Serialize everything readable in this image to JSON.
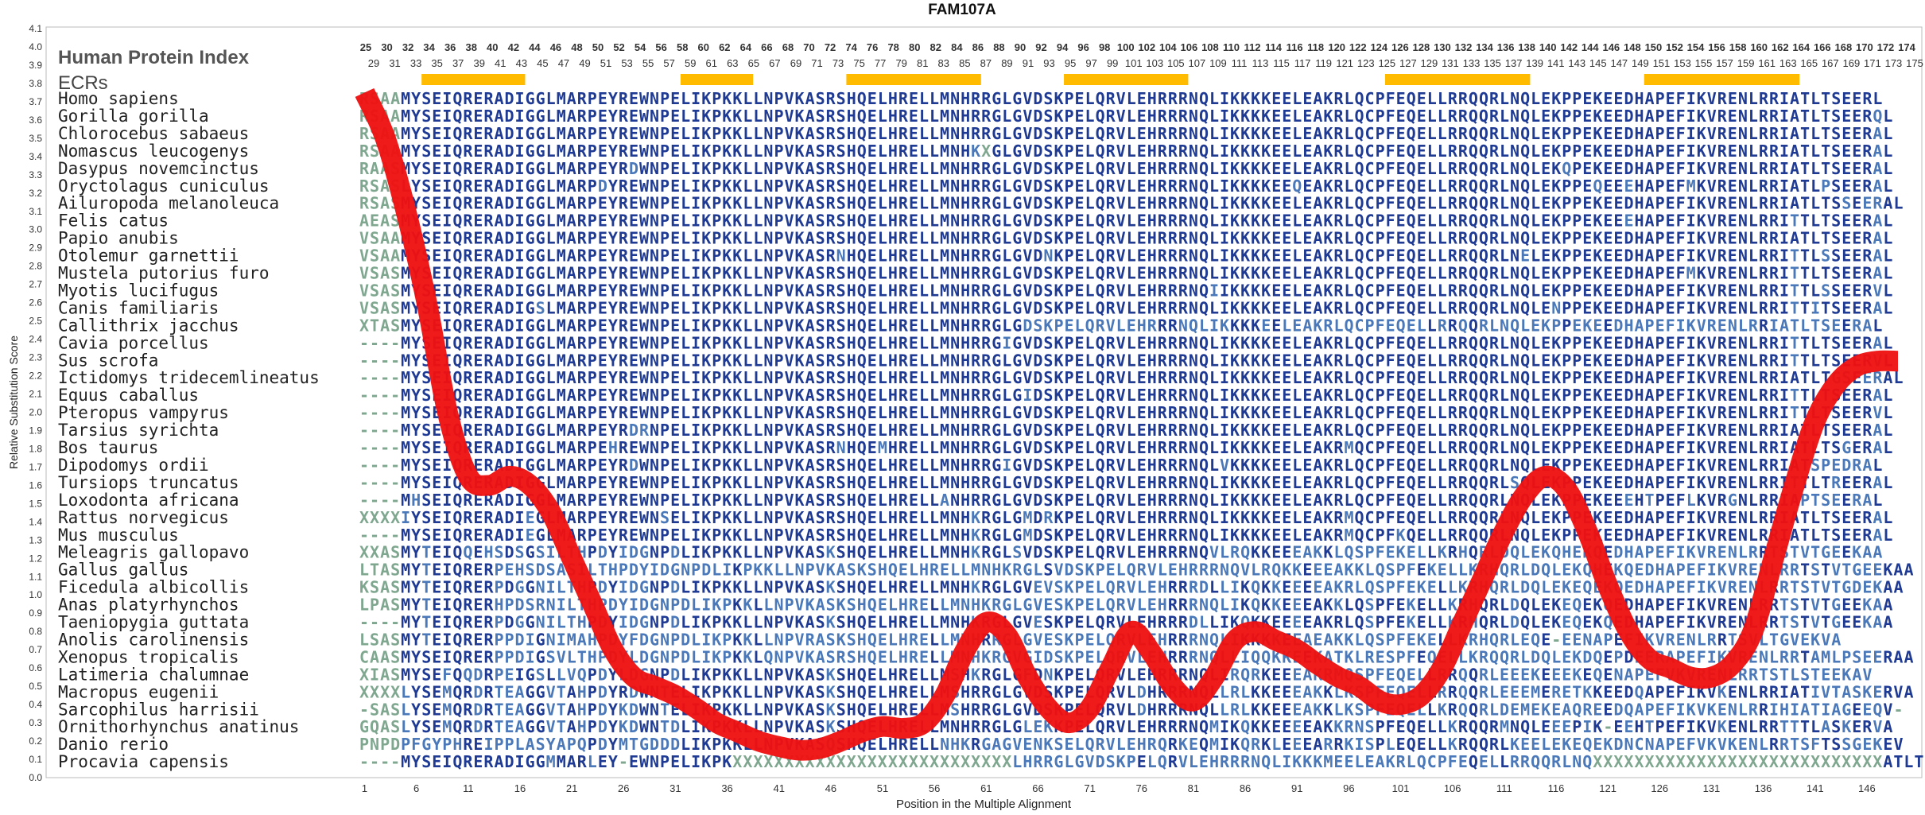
{
  "chart_data": {
    "type": "line",
    "title": "FAM107A",
    "ylabel": "Relative Substitution Score",
    "xlabel": "Position in the Multiple Alignment",
    "ylim": [
      0.0,
      4.1
    ],
    "yticks": [
      "0.0",
      "0.1",
      "0.2",
      "0.3",
      "0.4",
      "0.5",
      "0.6",
      "0.7",
      "0.8",
      "0.9",
      "1.0",
      "1.1",
      "1.2",
      "1.3",
      "1.4",
      "1.5",
      "1.6",
      "1.7",
      "1.8",
      "1.9",
      "2.0",
      "2.1",
      "2.2",
      "2.3",
      "2.4",
      "2.5",
      "2.6",
      "2.7",
      "2.8",
      "2.9",
      "3.0",
      "3.1",
      "3.2",
      "3.3",
      "3.4",
      "3.5",
      "3.6",
      "3.7",
      "3.8",
      "3.9",
      "4.0",
      "4.1"
    ],
    "xticks": [
      "1",
      "6",
      "11",
      "16",
      "21",
      "26",
      "31",
      "36",
      "41",
      "46",
      "51",
      "56",
      "61",
      "66",
      "71",
      "76",
      "81",
      "86",
      "91",
      "96",
      "101",
      "106",
      "111",
      "116",
      "121",
      "126",
      "131",
      "136",
      "141",
      "146"
    ],
    "header_label": "Human Protein Index",
    "ecr_label": "ECRs",
    "human_index_even": [
      "25",
      "30",
      "32",
      "34",
      "36",
      "38",
      "40",
      "42",
      "44",
      "46",
      "48",
      "50",
      "52",
      "54",
      "56",
      "58",
      "60",
      "62",
      "64",
      "66",
      "68",
      "70",
      "72",
      "74",
      "76",
      "78",
      "80",
      "82",
      "84",
      "86",
      "88",
      "90",
      "92",
      "94",
      "96",
      "98",
      "100",
      "102",
      "104",
      "106",
      "108",
      "110",
      "112",
      "114",
      "116",
      "118",
      "120",
      "122",
      "124",
      "126",
      "128",
      "130",
      "132",
      "134",
      "136",
      "138",
      "140",
      "142",
      "144",
      "146",
      "148",
      "150",
      "152",
      "154",
      "156",
      "158",
      "160",
      "162",
      "164",
      "166",
      "168",
      "170",
      "172",
      "174"
    ],
    "human_index_odd": [
      "29",
      "31",
      "33",
      "35",
      "37",
      "39",
      "41",
      "43",
      "45",
      "47",
      "49",
      "51",
      "53",
      "55",
      "57",
      "59",
      "61",
      "63",
      "65",
      "67",
      "69",
      "71",
      "73",
      "75",
      "77",
      "79",
      "81",
      "83",
      "85",
      "87",
      "89",
      "91",
      "93",
      "95",
      "97",
      "99",
      "101",
      "103",
      "105",
      "107",
      "109",
      "111",
      "113",
      "115",
      "117",
      "119",
      "121",
      "123",
      "125",
      "127",
      "129",
      "131",
      "133",
      "135",
      "137",
      "139",
      "141",
      "143",
      "145",
      "147",
      "149",
      "151",
      "153",
      "155",
      "157",
      "159",
      "161",
      "163",
      "165",
      "167",
      "169",
      "171",
      "173",
      "175"
    ],
    "ecr_regions": [
      [
        7,
        16
      ],
      [
        32,
        38
      ],
      [
        48,
        60
      ],
      [
        69,
        80
      ],
      [
        100,
        113
      ],
      [
        125,
        139
      ]
    ],
    "species": [
      "Homo sapiens",
      "Gorilla gorilla",
      "Chlorocebus sabaeus",
      "Nomascus leucogenys",
      "Dasypus novemcinctus",
      "Oryctolagus cuniculus",
      "Ailuropoda melanoleuca",
      "Felis catus",
      "Papio anubis",
      "Otolemur garnettii",
      "Mustela putorius furo",
      "Myotis lucifugus",
      "Canis familiaris",
      "Callithrix jacchus",
      "Cavia porcellus",
      "Sus scrofa",
      "Ictidomys tridecemlineatus",
      "Equus caballus",
      "Pteropus vampyrus",
      "Tarsius syrichta",
      "Bos taurus",
      "Dipodomys ordii",
      "Tursiops truncatus",
      "Loxodonta africana",
      "Rattus norvegicus",
      "Mus musculus",
      "Meleagris gallopavo",
      "Gallus gallus",
      "Ficedula albicollis",
      "Anas platyrhynchos",
      "Taeniopygia guttata",
      "Anolis carolinensis",
      "Xenopus tropicalis",
      "Latimeria chalumnae",
      "Macropus eugenii",
      "Sarcophilus harrisii",
      "Ornithorhynchus anatinus",
      "Danio rerio",
      "Procavia capensis"
    ],
    "sequences": [
      "RSAAMYSEIQRERADIGGLMARPEYREWNPELIKPKKLLNPVKASRSHQELHRELLMNHRRGLGVDSKPELQRVLEHRRRNQLIKKKKEELEAKRLQCPFEQELLRRQQRLNQLEKPPEKEEDHAPEFIKVRENLRRIATLTSEERL",
      "RSAAMYSEIQRERADIGGLMARPEYREWNPELIKPKKLLNPVKASRSHQELHRELLMNHRRGLGVDSKPELQRVLEHRRRNQLIKKKKEELEAKRLQCPFEQELLRRQQRLNQLEKPPEKEEDHAPEFIKVRENLRRIATLTSEERQL",
      "RSAAMYSEIQRERADIGGLMARPEYREWNPELIKPKKLLNPVKASRSHQELHRELLMNHRRGLGVDSKPELQRVLEHRRRNQLIKKKKEELEAKRLQCPFEQELLRRQQRLNQLEKPPEKEEDHAPEFIKVRENLRRIATLTSEERAL",
      "RSAAMYSEIQRERADIGGLMARPEYREWNPELIKPKKLLNPVKASRSHQELHRELLMNHKXGLGVDSKPELQRVLEHRRRNQLIKKKKEELEAKRLQCPFEQELLRRQQRLNQLEKPPEKEEDHAPEFIKVRENLRRIATLTSEERAL",
      "RAASMYSEIQRERADIGGLMARPEYRDWNPELIKPKKLLNPVKASRSHQELHRELLMNHRRGLGVDSKPELQRVLEHRRRNQLIKKKKEELEAKRLQCPFEQELLRRQQRLNQLEKQPEKEEDHAPEFIKVRENLRRIATLTSEERAL",
      "RSASLYSEIQRERADIGGLMARPDYREWNPELIKPKKLLNPVKASRSHQELHRELLMNHRRGLGVDSKPELQRVLEHRRRNQLIKKKKEEQEAKRLQCPFEQELLRRQQRLNQLEKPPEQEEEHAPEFMKVRENLRRIATLPSEERAL",
      "RSASMYSEIQRERADIGGLMARPEYREWNPELIKPKKLLNPVKASRSHQELHRELLMNHRRGLGVDSKPELQRVLEHRRRNQLIKKKKEELEAKRLQCPFEQELLRRQQRLNQLEKPPEKEEDHAPEFIKVRENLRRIATLTSSEERAL",
      "AEASMYSEIQRERADIGGLMARPEYREWNPELIKPKKLLNPVKASRSHQELHRELLMNHRRGLGVDSKPELQRVLEHRRRNQLIKKKKEELEAKRLQCPFEQELLRRQQRLNQLEKPPEKEEEHAPEFIKVRENLRRITTLTSEERAL",
      "VSAAMYSEIQRERADIGGLMARPEYREWNPELIKPKKLLNPVKASRSHQELHRELLMNHRRGLGVDSKPELQRVLEHRRRNQLIKKKKEELEAKRLQCPFEQELLRRQQRLNQLEKPPEKEEDHAPEFIKVRENLRRIATLTSEERAL",
      "VSAAMYSEIQRERADIGGLMARPEYREWNPELIKPKKLLNPVKASRNHQELHRELLMNHRRGLGVDNKPELQRVLEHRRRNQLIKKKKEELEAKRLQCPFEQELLRRQQRLNELEKPPEKEEDHAPEFIKVRENLRRITTLSSEERAL",
      "VSASMYSEIQRERADIGGLMARPEYREWNPELIKPKKLLNPVKASRSHQELHRELLMNHRRGLGVDSKPELQRVLEHRRRNQLIKKKKEELEAKRLQCPFEQELLRRQQRLNQLEKPPEKEEDHAPEFMKVRENLRRITTLTSEERAL",
      "VSASMYSEIQRERADIGGLMARPEYREWNPELIKPKKLLNPVKASRSHQELHRELLMNHRRGLGVDSKPELQRVLEHRRRNQIIKKKKEELEAKRLQCPFEQELLRRQQRLNQLEKPPEKEEDHAPEFIKVRENLRRITTLSSEERVL",
      "VSASMYSEIQRERADIGSLMARPEYREWNPELIKPKKLLNPVKASRSHQELHRELLMNHRRGLGVDSKPELQRVLEHRRRNQLIKKKKEELEAKRLQCPFEQELLRRQQRLNQLENPPEKEEDHAPEFIKVRENLRRITTITSEERAL",
      "XTASMYSEIQRERADIGGLMARPEYREWNPELIKPKKLLNPVKASRSHQELHRELLMNHRRGLGDSKPELQRVLEHRRRNQLIKKKKEELEAKRLQCPFEQELLRRQQRLNQLEKPPEKEEDHAPEFIKVRENLRRIATLTSEERAL",
      "----MYSEIQRERADIGGLMARPEYREWNPELIKPKKLLNPVKASRSHQELHRELLMNHRRGIGVDSKPELQRVLEHRRRNQLIKKKKEELEAKRLQCPFEQELLRRQQRLNQLEKPPEKEEDHAPEFIKVRENLRRITTLTSEERAL",
      "----MYSEIQRERADIGGLMARPEYREWNPELIKPKKLLNPVKASRSHQELHRELLMNHRRGLGVDSKPELQRVLEHRRRNQLIKKKKEELEAKRLQCPFEQELLRRQQRLNQLEKPPEKEEDHAPEFIKVRENLRRITTLTSEERVL",
      "----MYSEIQRERADIGGLMARPEYREWNPELIKPKKLLNPVKASRSHQELHRELLMNHRRGLGVDSKPELQRVLEHRRRNQLIKKKKEELEAKRLQCPFEQELLRRQQRLNQLEKPPEKEEDHAPEFIKVRENLRRIATLTGSEERAL",
      "----MYSEIQRERADIGGLMARPEYREWNPELIKPKKLLNPVKASRSHQELHRELLMNHRRGLGIDSKPELQRVLEHRRRNQLIKKKKEELEAKRLQCPFEQELLRRQQRLNQLEKPPEKEEDHAPEFIKVRENLRRITTLTSEERAL",
      "----MYSEIQRERADIGGLMARPEYREWNPELIKPKKLLNPVKASRSHQELHRELLMNHRRGLGVDSKPELQRVLEHRRRNQLIKKKKEELEAKRLQCPFEQELLRRQQRLNQLEKPPEKEEDHAPEFIKVRENLRRITTLTSEERVL",
      "----MYSEIQRERADIGGLMARPEYRDRNPELIKPKKLLNPVKASRSHQELHRELLMNHRRGLGVDSKPELQRVLEHRRRNQLIKKKKEELEAKRLQCPFEQELLRRQQRLNQLEKPPEKEEDHAPEFIKVRENLRRIATLTSEERAL",
      "----MYSEIQRERADIGGLMARPEHREWNPELIKPKKLLNPVKASRNHQEMHRELLMNHRRGLGVDSKPELQRVLEHRRRNQLIKKKKEELEAKRMQCPFEQELLRRQQRLNQLEKPPEKEEDHAPEFIKVRENLRRIATLTSGERAL",
      "----MYSEIQRERADIGGLMARPEYRDWNPELIKPKKLLNPVKASRSHQELHRELLMNHRRGIGVDSKPELQRVLEHRRRNQLVKKKKEELEAKRLQCPFEQELLRRQQRLNQLEKPPEKEEDHAPEFIKVRENLRRIATSPEDRAL",
      "----MYSEIQRERADIGGLMARPEYREWNPELIKPKKLLNPVKASRSHQELHRELLMNHRRGLGVDSKPELQRVLEHRRRNQLIKKKKEELEAKRLQCPFEQELLRRQQRLSQLEKPPEKEEDHAPEFIKVRENLRRITTLTREERAL",
      "----MHSEIQRERADIGGLMARPEYREWNPELIKPKKLLNPVKASRSHQELHRELLANHRRGLGVDSKPELQRVLEHRRRNQLIKKKKEELEAKRLQCPFEQELLRRQQRLNQLEKPPEKEEEHTPEFLKVRGNLRRIAPTSEERAL",
      "XXXXIYSEIQRERADIEGLMARPEYREWNSELIKPKKLLNPVKASRSHQELHRELLMNHKRGLGMDRKPELQRVLEHRRRNQLIKKKKEELEAKRMQCPFEQELLRRQQRLNQLEKPPEKEEDHAPEFIKVRENLRRIATLTSEERAL",
      "----MYSEIQRERADIEGLMARPEYREWNPELIKPKKLLNPVKASRSHQELHRELLMNHKRGLGMDSKPELQRVLEHRRRNQLIKKKKEELEAKRMQCPFKQELLRRQQRLNQLEKPPEKEEDHAPEFIKVRENLRRIATLTSEERAL",
      "XXASMYTEIQQEHSDSGSILTHPDYIDGNPDLIKPKKLLNPVKASKSHQELHRELLMNHKRGLSVDSKPELQRVLEHRRRNQVLRQKKEEEAKKLQSPFEKELLKRHQRLDQLEKQHEKQEDHAPEFIKVRENLRRTSTVTGEEKAA",
      "LTASMYTEIQRERPEHSDSASILTHPDYIDGNPDLIKPKKLLNPVKASKSHQELHRELLMNHKRGLSVDSKPELQRVLEHRRRNQVLRQKKEEEAKKLQSPFEKELLKRHQRLDQLEKQHEKQEDHAPEFIKVRENLRRTSTVTGEEKAA",
      "KSASMYTEIQRERPDGGNILTHPDYIDGNPDLIKPKKLLNPVKASKSHQELHRELLMNHKRGLGVEVSKPELQRVLEHRRRDLLIKQKKEEEEAKRLQSPFEKELLKRHQRLDQLEKEQEKQEDHAPEFIKVRENLRRTSTVTGDEKAA",
      "LPASMYTEIQRERHPDSRNILTHPDYIDGNPDLIKPKKLLNPVKASKSHQELHRELLMNHKRGLGVESKPELQRVLEHRRRNQLIKQKKEEEAKKLQSPFEKELLKRHQRLDQLEKEQEKQEDHAPEFIKVRENLRRTSTVTGEEKAA",
      "----MYTEIQRERPDGGNILTHPDYIDGNPDLIKPKKLLNPVKASKSHQELHRELLMNHKRGLGVESKPELQRVLEHRRRDLLIKQKKEEEEAKRLQSPFEKELLKRHQRLDQLEKEQEKQEDHAPEFIKVRENLRRTSTVTGEEKAA",
      "LSASMYTEIQRERPPDIGNIMAHPDYFDGNPDLIKPKKLLNPVRASKSHQELHRELLMNHRRGLGVESKPELQRVLEHRRRNQLIKKKKEEAEAKKLQSPFEKELLKRHQRLEQE-EENAPEFIKVRENLRRTSVLTGVEKVA",
      "CAASMYSEIQRERPPDIGSVLTHPDYLDGNPDLIKPKKLQNPVKASRSHQELHRELLMNHKRGVGIDSKPELQRVLEHRRRNQLLIQQKKEEKATKLRESPFEQELLKRQQRLDQLEKDQEPDEERAPEFIKVRENLRRTAMLPSEERAA",
      "XIASMYSEFQQDRPEIGSLLVQPDYLDGNPDLIKPKKLLNPVKASKSHQELHRELLMSHKRGLGFDNKPELQRVLEHRRRNQLIRQRKEEEAKRMQSPFEQELLRRQQRLEEEKEEEKEQENAPEFVKVRENLRRTSTLSTEEKAV",
      "XXXXLYSEMQRDRTEAGGVTAHPDYRDWNTELIKPKKLLNPVKASKSHQELHRELLMSHRRGLGVDSKPELQRVLDHRRRNQLLRLKKEEEAKKLKSPFEQELLRRQQRLEEEMERETKKEEDQAPEFIKVKENLRRIATIVTASKERVA",
      "-SASLYSEMQRDRTEAGGVTAHPDYKDWNTELIKPKKLLNPVKASKSHQELHRELLMSHRRGLGVDSKPELQRVLDHRRRNQLLRLKKEEEAKKLKSPFEQELLKRQQRLDEMEKEAQREEDQAPEFIKVKENLRRIHIATIAGEEQV-",
      "GQASLYSEMQRDRTEAGGVTAHPDYKDWNTDLIKPKKLLNPVKASKSHQELHRELLMNHRRGLGLEKKPELQRVLEHRRRNQMIKQKKEEEEAKKRNSPFEQELLKRQQRMNQLEEEPIK-EEHTPEFIKVKENLRRTTTLASKERVA",
      "PNPDPFGYPHREIPPLASYAPQPDYMTGDDDLIKPKKLLNPVKASQSHQELHRELLNHKRGAGVENKSELQRVLEHRQRKEQMIKQRKLEEEARRKISPLEQELLKRQQRLKEELEKEQEKDNCNAPEFVKVKENLRRTSFTSSGEKEV",
      "----MYSEIQRERADIGGMMARLEY-EWNPELIKPKXXXXXXXXXXXXXXXXXXXXXXXXXXXLHRRGLGVDSKPELQRVLEHRRRNQLIKKKMEELEAKRLQCPFEQELLRRQQRLNQXXXXXXXXXXXXXXXXXXXXXXXXXXXXATLTTEERVL"
    ],
    "series": [
      {
        "x": [
          1,
          3,
          5,
          7,
          9,
          11,
          13,
          15,
          17,
          19,
          21,
          23,
          25,
          27,
          29,
          31,
          33,
          35,
          37,
          39,
          41,
          43,
          45,
          47,
          49,
          51,
          53,
          55,
          57,
          59,
          61,
          63,
          65,
          67,
          69,
          71,
          73,
          75,
          77,
          79,
          81,
          83,
          85,
          87,
          89,
          91,
          93,
          95,
          97,
          99,
          101,
          103,
          105,
          107,
          109,
          111,
          113,
          115,
          117,
          119,
          121,
          123,
          125,
          127,
          129,
          131,
          133,
          135,
          137,
          139,
          141,
          143,
          145,
          147,
          149
        ],
        "y": [
          3.75,
          3.5,
          3.1,
          2.6,
          2.0,
          1.65,
          1.6,
          1.65,
          1.6,
          1.45,
          1.2,
          0.95,
          0.7,
          0.55,
          0.5,
          0.45,
          0.38,
          0.3,
          0.25,
          0.2,
          0.17,
          0.15,
          0.16,
          0.2,
          0.25,
          0.28,
          0.27,
          0.3,
          0.45,
          0.7,
          0.85,
          0.78,
          0.55,
          0.38,
          0.3,
          0.38,
          0.6,
          0.8,
          0.68,
          0.5,
          0.42,
          0.55,
          0.75,
          0.8,
          0.75,
          0.7,
          0.62,
          0.55,
          0.5,
          0.42,
          0.4,
          0.45,
          0.6,
          0.85,
          1.1,
          1.35,
          1.55,
          1.65,
          1.58,
          1.35,
          1.05,
          0.8,
          0.65,
          0.6,
          0.55,
          0.55,
          0.62,
          0.8,
          1.2,
          1.6,
          1.95,
          2.15,
          2.25,
          2.28,
          2.28
        ]
      }
    ],
    "colors": {
      "curve": "#ee1111",
      "ecr": "#ffbb00",
      "highly_conserved": "#1f3a93",
      "conserved": "#4a78b8",
      "variable": "#7fa78f",
      "title": "#111111",
      "axis": "#444444"
    }
  }
}
